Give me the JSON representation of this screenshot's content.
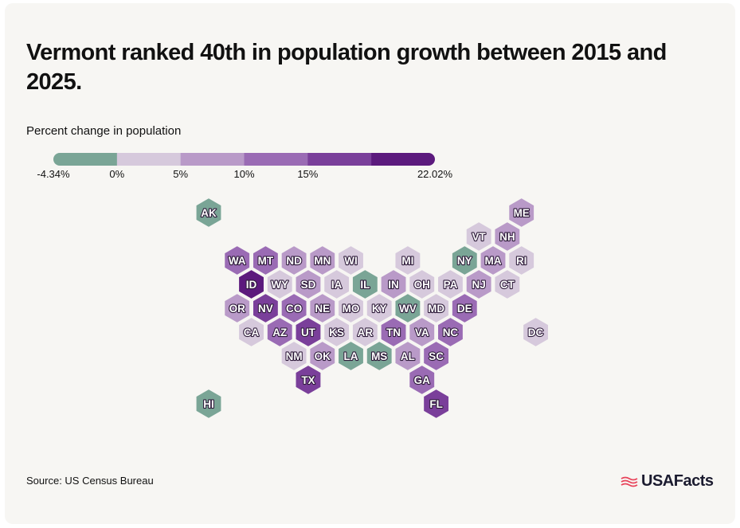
{
  "title": "Vermont ranked 40th in population growth between 2015 and 2025.",
  "subtitle": "Percent change in population",
  "source": "Source: US Census Bureau",
  "brand": "USAFacts",
  "colors": {
    "card_bg": "#f7f6f3",
    "text": "#111111",
    "hex_text": "#ffffff",
    "hex_outline": "#2e1b3a",
    "brand_red": "#e8435a"
  },
  "legend": {
    "bins": [
      {
        "min": -4.34,
        "max": 0,
        "color": "#7aa596"
      },
      {
        "min": 0,
        "max": 5,
        "color": "#d6c9dc"
      },
      {
        "min": 5,
        "max": 10,
        "color": "#b99ac8"
      },
      {
        "min": 10,
        "max": 15,
        "color": "#9a6bb4"
      },
      {
        "min": 15,
        "max": 20,
        "color": "#7a3f9a"
      },
      {
        "min": 20,
        "max": 22.02,
        "color": "#5c1a7d"
      }
    ],
    "labels": [
      "-4.34%",
      "0%",
      "5%",
      "10%",
      "15%",
      "22.02%"
    ]
  },
  "chart_data": {
    "type": "hex-tile-map",
    "metric": "Percent change in population, 2015–2025",
    "states": [
      {
        "abbr": "AK",
        "col": 0,
        "row": 0,
        "bin": 0
      },
      {
        "abbr": "ME",
        "col": 11,
        "row": 0,
        "bin": 2
      },
      {
        "abbr": "VT",
        "col": 9.5,
        "row": 1,
        "bin": 1
      },
      {
        "abbr": "NH",
        "col": 10.5,
        "row": 1,
        "bin": 2
      },
      {
        "abbr": "WA",
        "col": 1,
        "row": 2,
        "bin": 3
      },
      {
        "abbr": "MT",
        "col": 2,
        "row": 2,
        "bin": 3
      },
      {
        "abbr": "ND",
        "col": 3,
        "row": 2,
        "bin": 2
      },
      {
        "abbr": "MN",
        "col": 4,
        "row": 2,
        "bin": 2
      },
      {
        "abbr": "WI",
        "col": 5,
        "row": 2,
        "bin": 1
      },
      {
        "abbr": "MI",
        "col": 7,
        "row": 2,
        "bin": 1
      },
      {
        "abbr": "NY",
        "col": 9,
        "row": 2,
        "bin": 0
      },
      {
        "abbr": "MA",
        "col": 10,
        "row": 2,
        "bin": 2
      },
      {
        "abbr": "RI",
        "col": 11,
        "row": 2,
        "bin": 1
      },
      {
        "abbr": "ID",
        "col": 1.5,
        "row": 3,
        "bin": 5
      },
      {
        "abbr": "WY",
        "col": 2.5,
        "row": 3,
        "bin": 1
      },
      {
        "abbr": "SD",
        "col": 3.5,
        "row": 3,
        "bin": 2
      },
      {
        "abbr": "IA",
        "col": 4.5,
        "row": 3,
        "bin": 1
      },
      {
        "abbr": "IL",
        "col": 5.5,
        "row": 3,
        "bin": 0
      },
      {
        "abbr": "IN",
        "col": 6.5,
        "row": 3,
        "bin": 2
      },
      {
        "abbr": "OH",
        "col": 7.5,
        "row": 3,
        "bin": 1
      },
      {
        "abbr": "PA",
        "col": 8.5,
        "row": 3,
        "bin": 1
      },
      {
        "abbr": "NJ",
        "col": 9.5,
        "row": 3,
        "bin": 2
      },
      {
        "abbr": "CT",
        "col": 10.5,
        "row": 3,
        "bin": 1
      },
      {
        "abbr": "OR",
        "col": 1,
        "row": 4,
        "bin": 2
      },
      {
        "abbr": "NV",
        "col": 2,
        "row": 4,
        "bin": 4
      },
      {
        "abbr": "CO",
        "col": 3,
        "row": 4,
        "bin": 3
      },
      {
        "abbr": "NE",
        "col": 4,
        "row": 4,
        "bin": 2
      },
      {
        "abbr": "MO",
        "col": 5,
        "row": 4,
        "bin": 1
      },
      {
        "abbr": "KY",
        "col": 6,
        "row": 4,
        "bin": 1
      },
      {
        "abbr": "WV",
        "col": 7,
        "row": 4,
        "bin": 0
      },
      {
        "abbr": "MD",
        "col": 8,
        "row": 4,
        "bin": 1
      },
      {
        "abbr": "DE",
        "col": 9,
        "row": 4,
        "bin": 3
      },
      {
        "abbr": "CA",
        "col": 1.5,
        "row": 5,
        "bin": 1
      },
      {
        "abbr": "AZ",
        "col": 2.5,
        "row": 5,
        "bin": 3
      },
      {
        "abbr": "UT",
        "col": 3.5,
        "row": 5,
        "bin": 4
      },
      {
        "abbr": "KS",
        "col": 4.5,
        "row": 5,
        "bin": 1
      },
      {
        "abbr": "AR",
        "col": 5.5,
        "row": 5,
        "bin": 1
      },
      {
        "abbr": "TN",
        "col": 6.5,
        "row": 5,
        "bin": 3
      },
      {
        "abbr": "VA",
        "col": 7.5,
        "row": 5,
        "bin": 2
      },
      {
        "abbr": "NC",
        "col": 8.5,
        "row": 5,
        "bin": 3
      },
      {
        "abbr": "DC",
        "col": 11.5,
        "row": 5,
        "bin": 1
      },
      {
        "abbr": "NM",
        "col": 3,
        "row": 6,
        "bin": 1
      },
      {
        "abbr": "OK",
        "col": 4,
        "row": 6,
        "bin": 2
      },
      {
        "abbr": "LA",
        "col": 5,
        "row": 6,
        "bin": 0
      },
      {
        "abbr": "MS",
        "col": 6,
        "row": 6,
        "bin": 0
      },
      {
        "abbr": "AL",
        "col": 7,
        "row": 6,
        "bin": 2
      },
      {
        "abbr": "SC",
        "col": 8,
        "row": 6,
        "bin": 3
      },
      {
        "abbr": "TX",
        "col": 3.5,
        "row": 7,
        "bin": 4
      },
      {
        "abbr": "GA",
        "col": 7.5,
        "row": 7,
        "bin": 3
      },
      {
        "abbr": "HI",
        "col": 0,
        "row": 8,
        "bin": 0
      },
      {
        "abbr": "FL",
        "col": 8,
        "row": 8,
        "bin": 4
      }
    ]
  }
}
